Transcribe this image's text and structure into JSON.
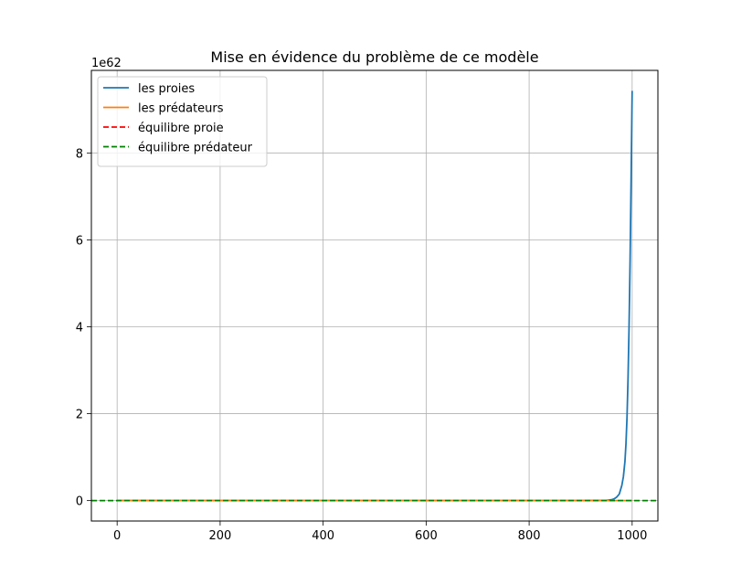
{
  "chart_data": {
    "type": "line",
    "title": "Mise en évidence du problème de ce modèle",
    "xlabel": "",
    "ylabel": "",
    "offset_label": "1e62",
    "xlim": [
      -50,
      1050
    ],
    "ylim": [
      -0.47,
      9.9
    ],
    "xticks": [
      0,
      200,
      400,
      600,
      800,
      1000
    ],
    "xtick_labels": [
      "0",
      "200",
      "400",
      "600",
      "800",
      "1000"
    ],
    "yticks": [
      0,
      2,
      4,
      6,
      8
    ],
    "ytick_labels": [
      "0",
      "2",
      "4",
      "6",
      "8"
    ],
    "grid": true,
    "legend_position": "upper left",
    "series": [
      {
        "name": "les proies",
        "color": "#1f77b4",
        "style": "solid",
        "x": [
          0,
          900,
          950,
          960,
          965,
          970,
          975,
          980,
          983,
          986,
          988,
          990,
          992,
          994,
          996,
          998,
          999,
          1000
        ],
        "y": [
          0,
          0,
          0.005,
          0.02,
          0.04,
          0.08,
          0.15,
          0.35,
          0.55,
          0.9,
          1.3,
          1.9,
          2.8,
          4.0,
          5.5,
          7.4,
          8.4,
          9.43
        ]
      },
      {
        "name": "les prédateurs",
        "color": "#ff7f0e",
        "style": "solid",
        "x": [
          0,
          1000
        ],
        "y": [
          0,
          0
        ]
      },
      {
        "name": "équilibre proie",
        "color": "#ff0000",
        "style": "dashed",
        "hline": 0
      },
      {
        "name": "équilibre prédateur",
        "color": "#008000",
        "style": "dashed",
        "hline": 0
      }
    ]
  }
}
